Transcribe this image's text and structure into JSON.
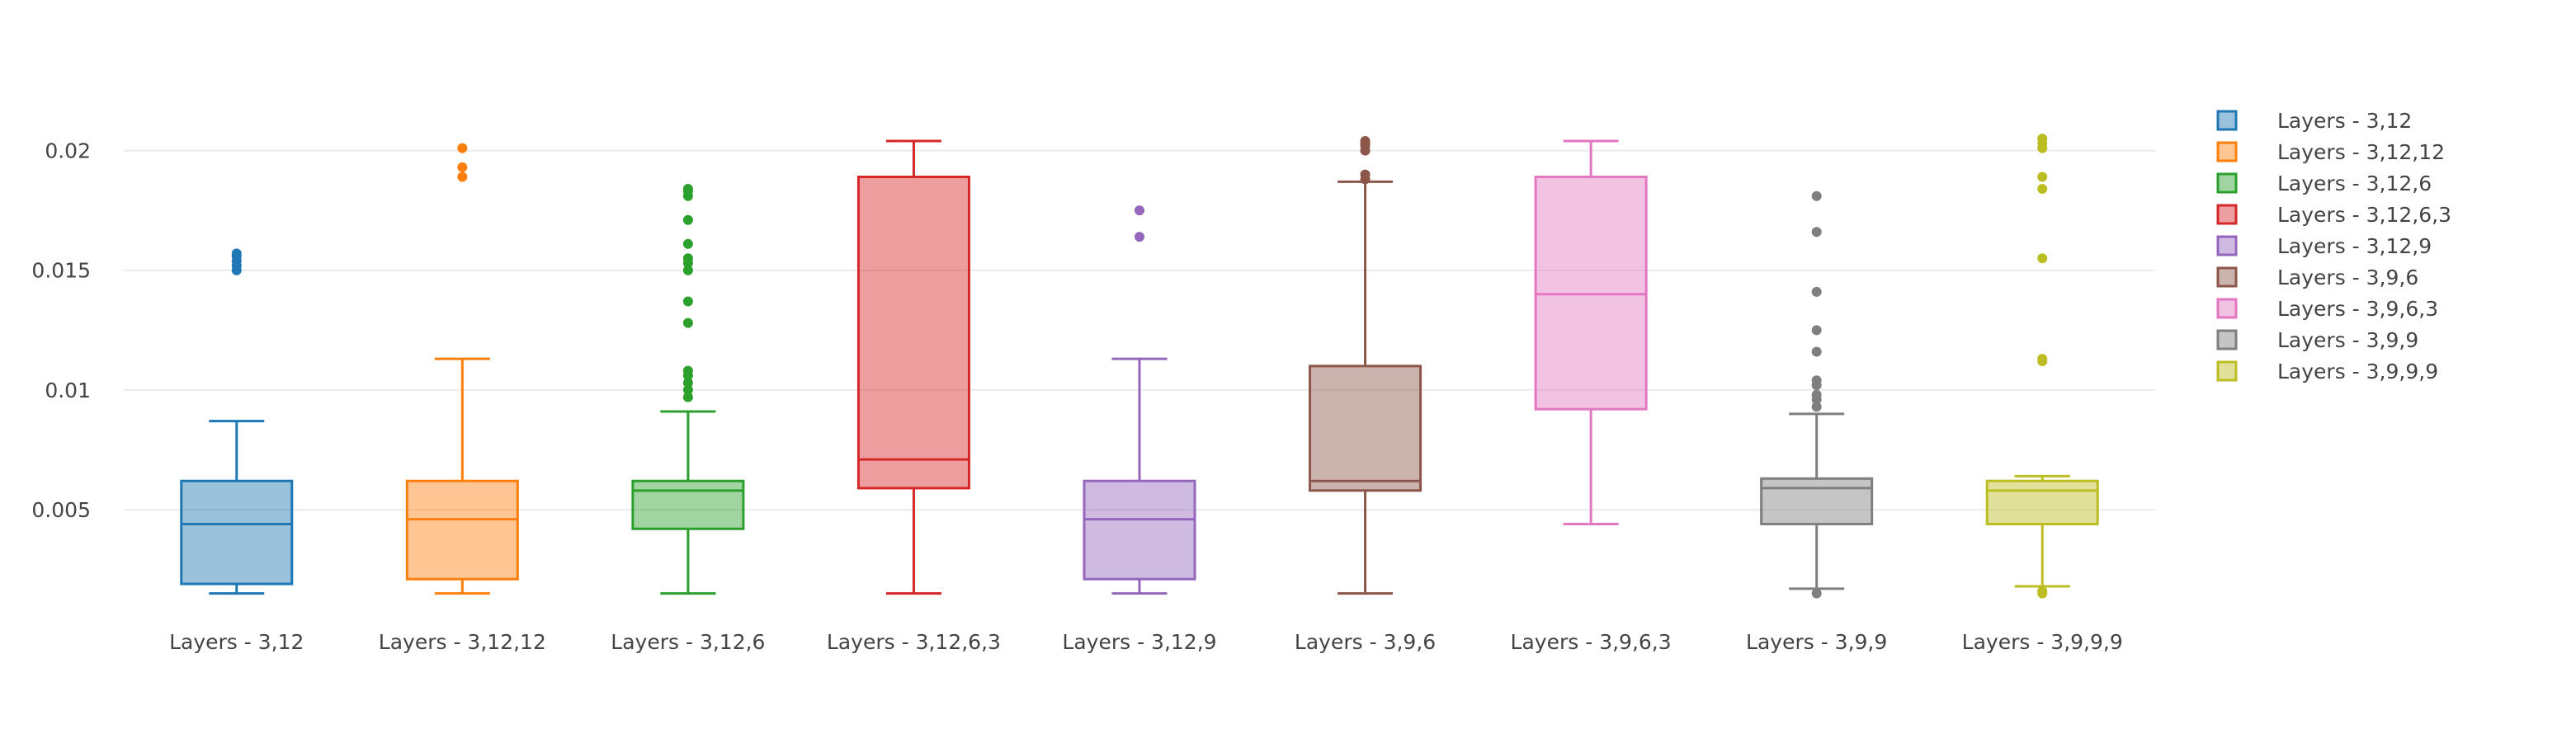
{
  "chart_data": {
    "type": "box",
    "title": "",
    "xlabel": "",
    "ylabel": "",
    "ylim": [
      0.0008,
      0.0225
    ],
    "y_ticks": [
      0.005,
      0.01,
      0.015,
      0.02
    ],
    "y_tick_labels": [
      "0.005",
      "0.01",
      "0.015",
      "0.02"
    ],
    "grid": true,
    "legend_position": "top-right",
    "series": [
      {
        "name": "Layers - 3,12",
        "color": "#1f77b4",
        "min": 0.0015,
        "q1": 0.0019,
        "median": 0.0044,
        "q3": 0.0062,
        "max": 0.0087,
        "outliers": [
          0.015,
          0.0152,
          0.0154,
          0.0156,
          0.0157
        ]
      },
      {
        "name": "Layers - 3,12,12",
        "color": "#ff7f0e",
        "min": 0.0015,
        "q1": 0.0021,
        "median": 0.0046,
        "q3": 0.0062,
        "max": 0.0113,
        "outliers": [
          0.0189,
          0.0193,
          0.0201
        ]
      },
      {
        "name": "Layers - 3,12,6",
        "color": "#2ca02c",
        "min": 0.0015,
        "q1": 0.0042,
        "median": 0.0058,
        "q3": 0.0062,
        "max": 0.0091,
        "outliers": [
          0.0097,
          0.01,
          0.0103,
          0.0106,
          0.0108,
          0.0128,
          0.0137,
          0.015,
          0.0153,
          0.0155,
          0.0161,
          0.0171,
          0.0181,
          0.0183,
          0.0184
        ]
      },
      {
        "name": "Layers - 3,12,6,3",
        "color": "#d62728",
        "min": 0.0015,
        "q1": 0.0059,
        "median": 0.0071,
        "q3": 0.0189,
        "max": 0.0204,
        "outliers": []
      },
      {
        "name": "Layers - 3,12,9",
        "color": "#9467bd",
        "min": 0.0015,
        "q1": 0.0021,
        "median": 0.0046,
        "q3": 0.0062,
        "max": 0.0113,
        "outliers": [
          0.0164,
          0.0175
        ]
      },
      {
        "name": "Layers - 3,9,6",
        "color": "#8c564b",
        "min": 0.0015,
        "q1": 0.0058,
        "median": 0.0062,
        "q3": 0.011,
        "max": 0.0187,
        "outliers": [
          0.0188,
          0.019,
          0.02,
          0.0202,
          0.0203,
          0.0204
        ]
      },
      {
        "name": "Layers - 3,9,6,3",
        "color": "#e377c2",
        "min": 0.0044,
        "q1": 0.0092,
        "median": 0.014,
        "q3": 0.0189,
        "max": 0.0204,
        "outliers": []
      },
      {
        "name": "Layers - 3,9,9",
        "color": "#7f7f7f",
        "min": 0.0017,
        "q1": 0.0044,
        "median": 0.0059,
        "q3": 0.0063,
        "max": 0.009,
        "outliers": [
          0.0015,
          0.0093,
          0.0096,
          0.0098,
          0.0102,
          0.0104,
          0.0116,
          0.0125,
          0.0141,
          0.0166,
          0.0181
        ]
      },
      {
        "name": "Layers - 3,9,9,9",
        "color": "#bcbd22",
        "min": 0.0018,
        "q1": 0.0044,
        "median": 0.0058,
        "q3": 0.0062,
        "max": 0.0064,
        "outliers": [
          0.0015,
          0.0016,
          0.0112,
          0.0113,
          0.0155,
          0.0184,
          0.0189,
          0.0201,
          0.0203,
          0.0205
        ]
      }
    ]
  }
}
